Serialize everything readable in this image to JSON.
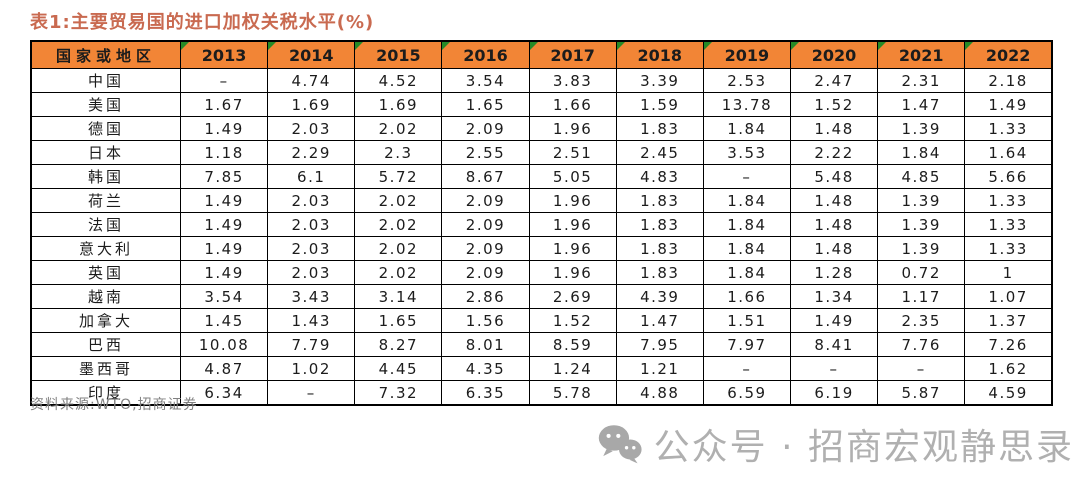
{
  "title": "表1:主要贸易国的进口加权关税水平(%)",
  "table": {
    "corner_header": "国家或地区",
    "years": [
      "2013",
      "2014",
      "2015",
      "2016",
      "2017",
      "2018",
      "2019",
      "2020",
      "2021",
      "2022"
    ],
    "rows": [
      {
        "country": "中国",
        "values": [
          "–",
          "4.74",
          "4.52",
          "3.54",
          "3.83",
          "3.39",
          "2.53",
          "2.47",
          "2.31",
          "2.18"
        ]
      },
      {
        "country": "美国",
        "values": [
          "1.67",
          "1.69",
          "1.69",
          "1.65",
          "1.66",
          "1.59",
          "13.78",
          "1.52",
          "1.47",
          "1.49"
        ]
      },
      {
        "country": "德国",
        "values": [
          "1.49",
          "2.03",
          "2.02",
          "2.09",
          "1.96",
          "1.83",
          "1.84",
          "1.48",
          "1.39",
          "1.33"
        ]
      },
      {
        "country": "日本",
        "values": [
          "1.18",
          "2.29",
          "2.3",
          "2.55",
          "2.51",
          "2.45",
          "3.53",
          "2.22",
          "1.84",
          "1.64"
        ]
      },
      {
        "country": "韩国",
        "values": [
          "7.85",
          "6.1",
          "5.72",
          "8.67",
          "5.05",
          "4.83",
          "–",
          "5.48",
          "4.85",
          "5.66"
        ]
      },
      {
        "country": "荷兰",
        "values": [
          "1.49",
          "2.03",
          "2.02",
          "2.09",
          "1.96",
          "1.83",
          "1.84",
          "1.48",
          "1.39",
          "1.33"
        ]
      },
      {
        "country": "法国",
        "values": [
          "1.49",
          "2.03",
          "2.02",
          "2.09",
          "1.96",
          "1.83",
          "1.84",
          "1.48",
          "1.39",
          "1.33"
        ]
      },
      {
        "country": "意大利",
        "values": [
          "1.49",
          "2.03",
          "2.02",
          "2.09",
          "1.96",
          "1.83",
          "1.84",
          "1.48",
          "1.39",
          "1.33"
        ]
      },
      {
        "country": "英国",
        "values": [
          "1.49",
          "2.03",
          "2.02",
          "2.09",
          "1.96",
          "1.83",
          "1.84",
          "1.28",
          "0.72",
          "1"
        ]
      },
      {
        "country": "越南",
        "values": [
          "3.54",
          "3.43",
          "3.14",
          "2.86",
          "2.69",
          "4.39",
          "1.66",
          "1.34",
          "1.17",
          "1.07"
        ]
      },
      {
        "country": "加拿大",
        "values": [
          "1.45",
          "1.43",
          "1.65",
          "1.56",
          "1.52",
          "1.47",
          "1.51",
          "1.49",
          "2.35",
          "1.37"
        ]
      },
      {
        "country": "巴西",
        "values": [
          "10.08",
          "7.79",
          "8.27",
          "8.01",
          "8.59",
          "7.95",
          "7.97",
          "8.41",
          "7.76",
          "7.26"
        ]
      },
      {
        "country": "墨西哥",
        "values": [
          "4.87",
          "1.02",
          "4.45",
          "4.35",
          "1.24",
          "1.21",
          "–",
          "–",
          "–",
          "1.62"
        ]
      },
      {
        "country": "印度",
        "values": [
          "6.34",
          "–",
          "7.32",
          "6.35",
          "5.78",
          "4.88",
          "6.59",
          "6.19",
          "5.87",
          "4.59"
        ]
      }
    ]
  },
  "source_note": "资料来源:WTO,招商证券",
  "watermark": {
    "icon": "wechat-icon",
    "text": "公众号 · 招商宏观静思录"
  },
  "colors": {
    "header_bg": "#F28536",
    "title_text": "#C96A50",
    "triangle_green": "#268A26",
    "table_border": "#000000",
    "source_text": "#808080",
    "watermark_gray": "#B0B0B0"
  }
}
